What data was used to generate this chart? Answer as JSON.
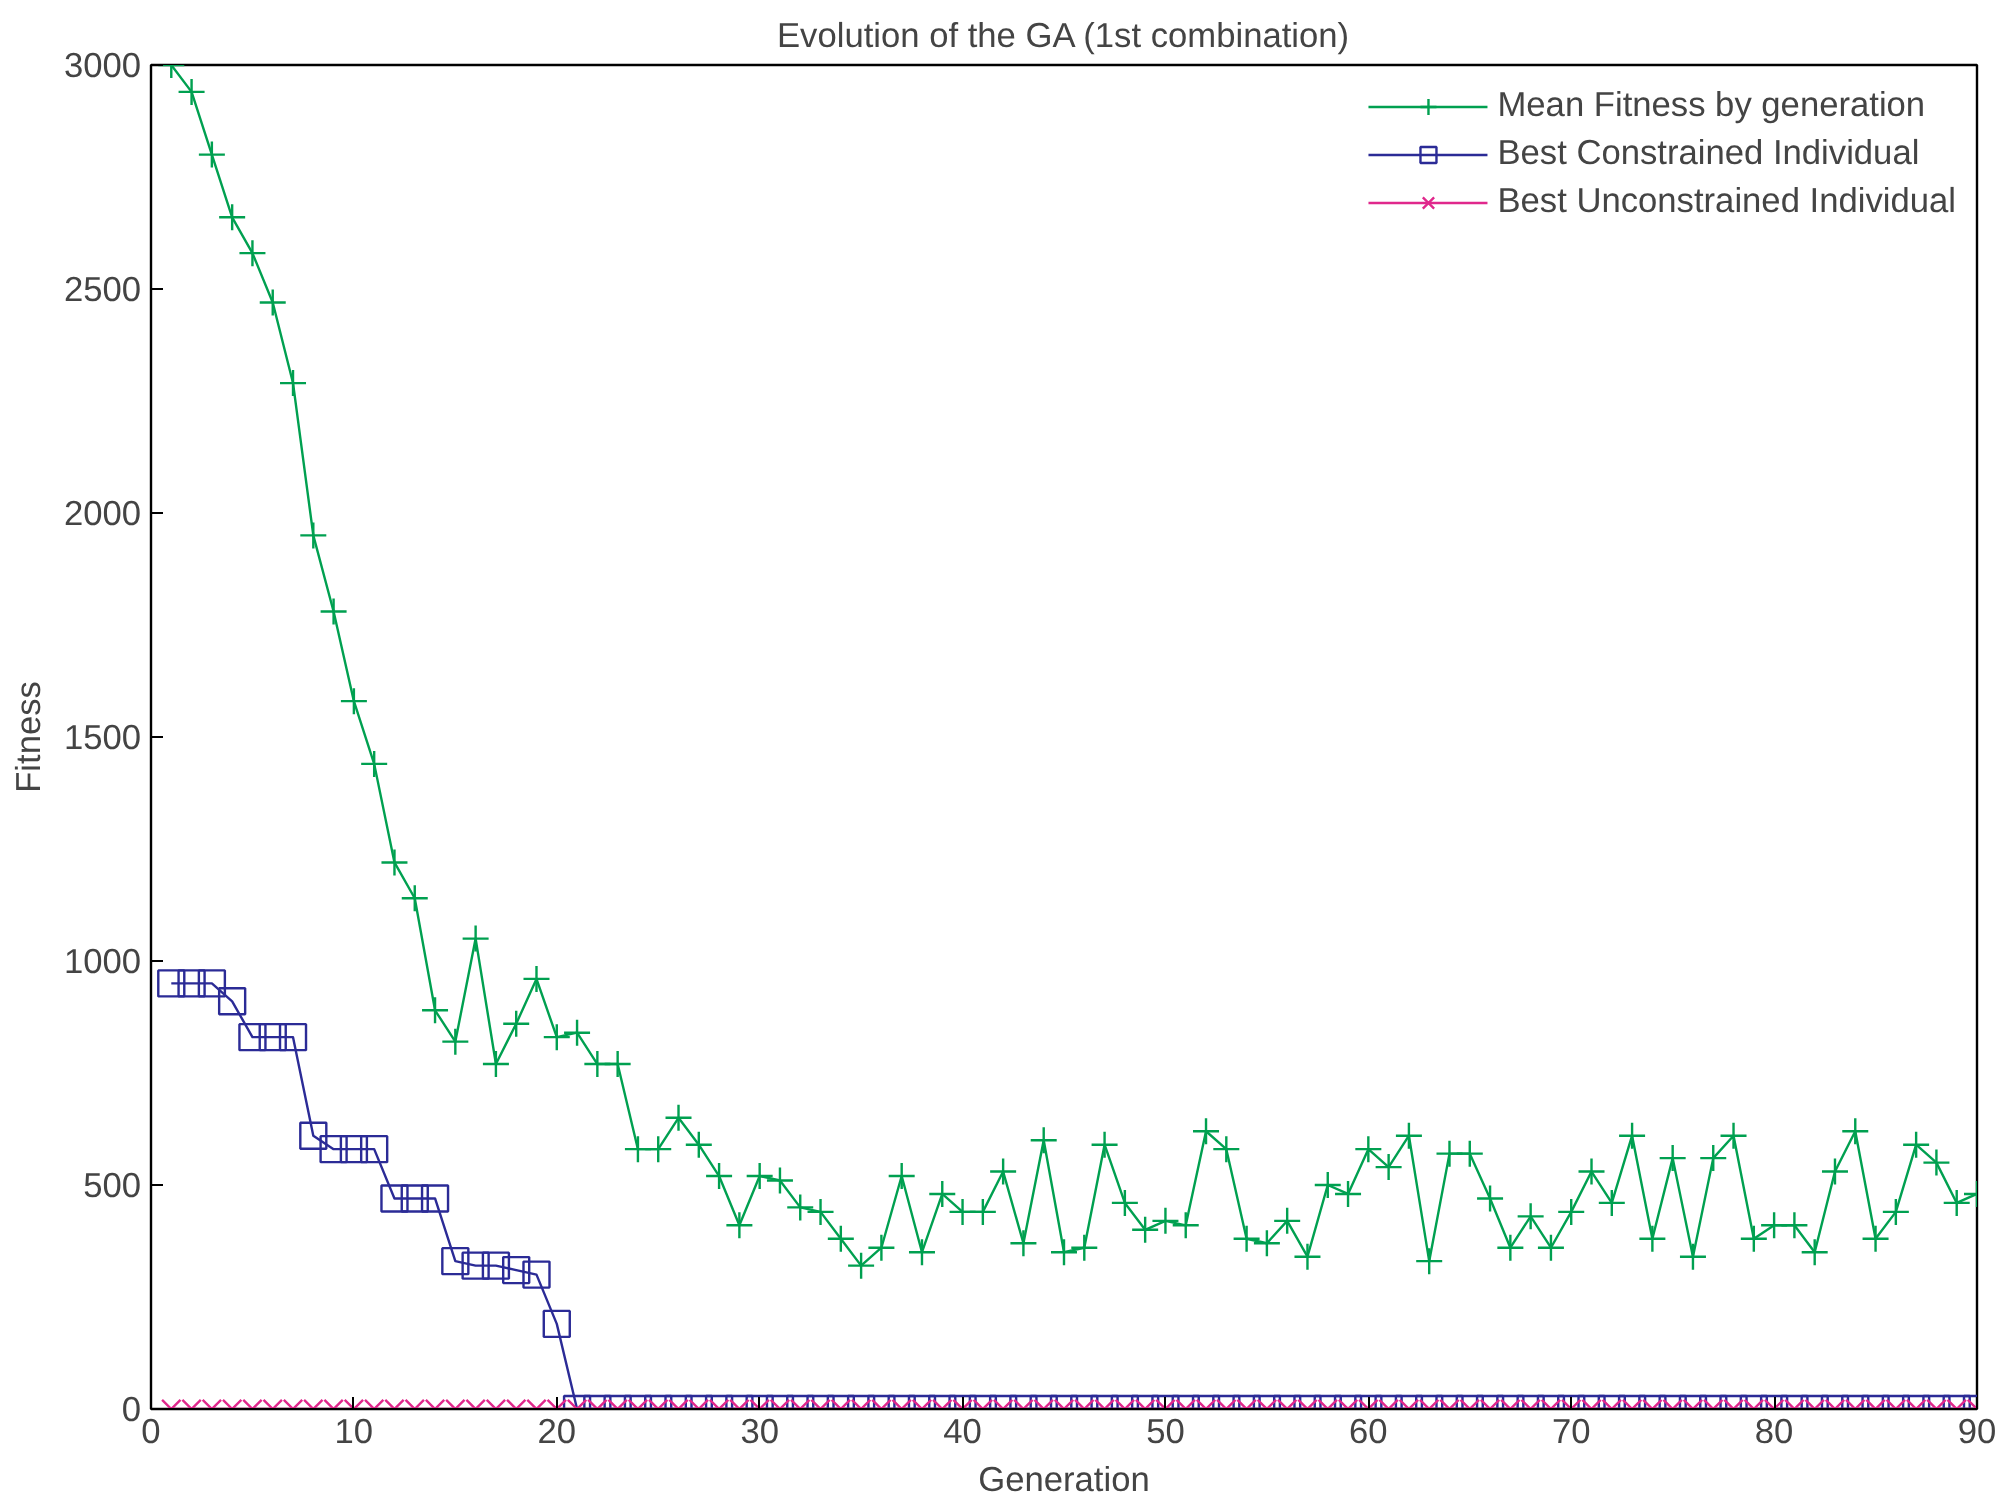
{
  "chart_data": {
    "type": "line",
    "title": "Evolution of the GA (1st combination)",
    "xlabel": "Generation",
    "ylabel": "Fitness",
    "x": [
      1,
      2,
      3,
      4,
      5,
      6,
      7,
      8,
      9,
      10,
      11,
      12,
      13,
      14,
      15,
      16,
      17,
      18,
      19,
      20,
      21,
      22,
      23,
      24,
      25,
      26,
      27,
      28,
      29,
      30,
      31,
      32,
      33,
      34,
      35,
      36,
      37,
      38,
      39,
      40,
      41,
      42,
      43,
      44,
      45,
      46,
      47,
      48,
      49,
      50,
      51,
      52,
      53,
      54,
      55,
      56,
      57,
      58,
      59,
      60,
      61,
      62,
      63,
      64,
      65,
      66,
      67,
      68,
      69,
      70,
      71,
      72,
      73,
      74,
      75,
      76,
      77,
      78,
      79,
      80,
      81,
      82,
      83,
      84,
      85,
      86,
      87,
      88,
      89,
      90
    ],
    "series": [
      {
        "name": "Mean Fitness by generation",
        "color": "#00a050",
        "marker": "cross",
        "values": [
          3000,
          2940,
          2800,
          2660,
          2580,
          2470,
          2290,
          1950,
          1780,
          1580,
          1440,
          1220,
          1140,
          890,
          820,
          1050,
          770,
          860,
          960,
          830,
          840,
          770,
          770,
          580,
          580,
          650,
          590,
          520,
          410,
          520,
          510,
          450,
          440,
          380,
          320,
          360,
          520,
          350,
          480,
          440,
          440,
          530,
          370,
          600,
          350,
          360,
          590,
          460,
          400,
          420,
          410,
          620,
          580,
          380,
          370,
          420,
          340,
          500,
          480,
          580,
          540,
          610,
          330,
          570,
          570,
          470,
          360,
          430,
          360,
          440,
          530,
          460,
          610,
          380,
          560,
          340,
          560,
          610,
          380,
          410,
          410,
          350,
          530,
          620,
          380,
          440,
          590,
          550,
          460,
          480
        ]
      },
      {
        "name": "Best Constrained Individual",
        "color": "#2b2b96",
        "marker": "square",
        "values": [
          950,
          950,
          950,
          910,
          830,
          830,
          830,
          610,
          580,
          580,
          580,
          470,
          470,
          470,
          330,
          320,
          320,
          310,
          300,
          190,
          0,
          0,
          0,
          0,
          0,
          0,
          0,
          0,
          0,
          0,
          0,
          0,
          0,
          0,
          0,
          0,
          0,
          0,
          0,
          0,
          0,
          0,
          0,
          0,
          0,
          0,
          0,
          0,
          0,
          0,
          0,
          0,
          0,
          0,
          0,
          0,
          0,
          0,
          0,
          0,
          0,
          0,
          0,
          0,
          0,
          0,
          0,
          0,
          0,
          0,
          0,
          0,
          0,
          0,
          0,
          0,
          0,
          0,
          0,
          0,
          0,
          0,
          0,
          0,
          0,
          0,
          0,
          0,
          0,
          0
        ]
      },
      {
        "name": "Best Unconstrained Individual",
        "color": "#e0288c",
        "marker": "x",
        "values": [
          0,
          0,
          0,
          0,
          0,
          0,
          0,
          0,
          0,
          0,
          0,
          0,
          0,
          0,
          0,
          0,
          0,
          0,
          0,
          0,
          0,
          0,
          0,
          0,
          0,
          0,
          0,
          0,
          0,
          0,
          0,
          0,
          0,
          0,
          0,
          0,
          0,
          0,
          0,
          0,
          0,
          0,
          0,
          0,
          0,
          0,
          0,
          0,
          0,
          0,
          0,
          0,
          0,
          0,
          0,
          0,
          0,
          0,
          0,
          0,
          0,
          0,
          0,
          0,
          0,
          0,
          0,
          0,
          0,
          0,
          0,
          0,
          0,
          0,
          0,
          0,
          0,
          0,
          0,
          0,
          0,
          0,
          0,
          0,
          0,
          0,
          0,
          0,
          0,
          0
        ]
      }
    ],
    "xlim": [
      0,
      90
    ],
    "xticks": [
      0,
      10,
      20,
      30,
      40,
      50,
      60,
      70,
      80,
      90
    ],
    "ylim": [
      0,
      3000
    ],
    "yticks": [
      0,
      500,
      1000,
      1500,
      2000,
      2500,
      3000
    ],
    "grid": false,
    "legend": "top right"
  }
}
